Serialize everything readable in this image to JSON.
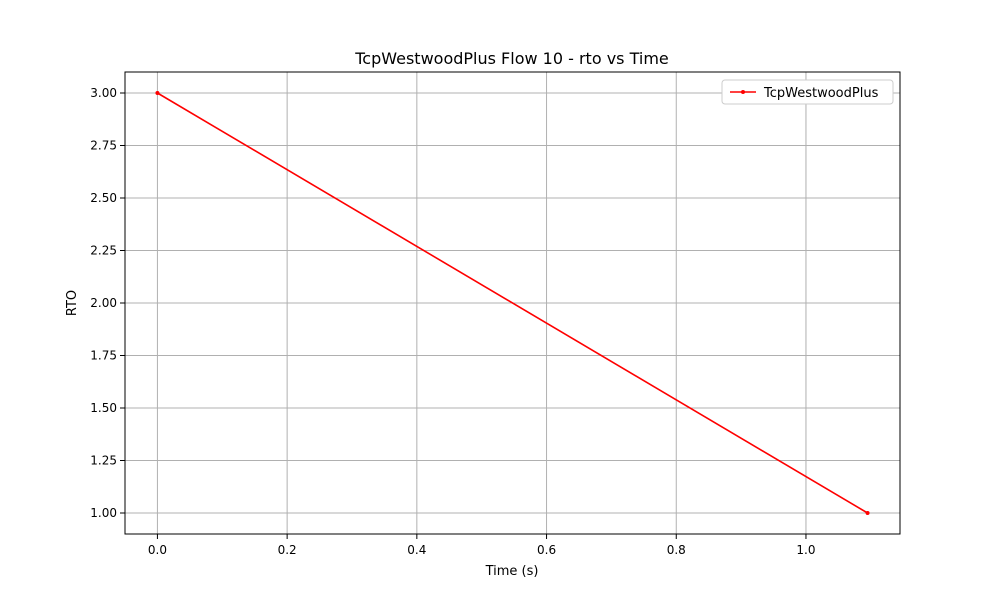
{
  "chart_data": {
    "type": "line",
    "title": "TcpWestwoodPlus Flow 10 - rto vs Time",
    "xlabel": "Time (s)",
    "ylabel": "RTO",
    "xlim": [
      -0.05,
      1.145
    ],
    "ylim": [
      0.9,
      3.1
    ],
    "xticks": [
      0.0,
      0.2,
      0.4,
      0.6,
      0.8,
      1.0
    ],
    "xtick_labels": [
      "0.0",
      "0.2",
      "0.4",
      "0.6",
      "0.8",
      "1.0"
    ],
    "yticks": [
      1.0,
      1.25,
      1.5,
      1.75,
      2.0,
      2.25,
      2.5,
      2.75,
      3.0
    ],
    "ytick_labels": [
      "1.00",
      "1.25",
      "1.50",
      "1.75",
      "2.00",
      "2.25",
      "2.50",
      "2.75",
      "3.00"
    ],
    "grid": true,
    "legend_position": "top-right",
    "series": [
      {
        "name": "TcpWestwoodPlus",
        "color": "#ff0000",
        "marker": "dot",
        "x": [
          0.0,
          1.095
        ],
        "y": [
          3.0,
          1.0
        ]
      }
    ]
  }
}
